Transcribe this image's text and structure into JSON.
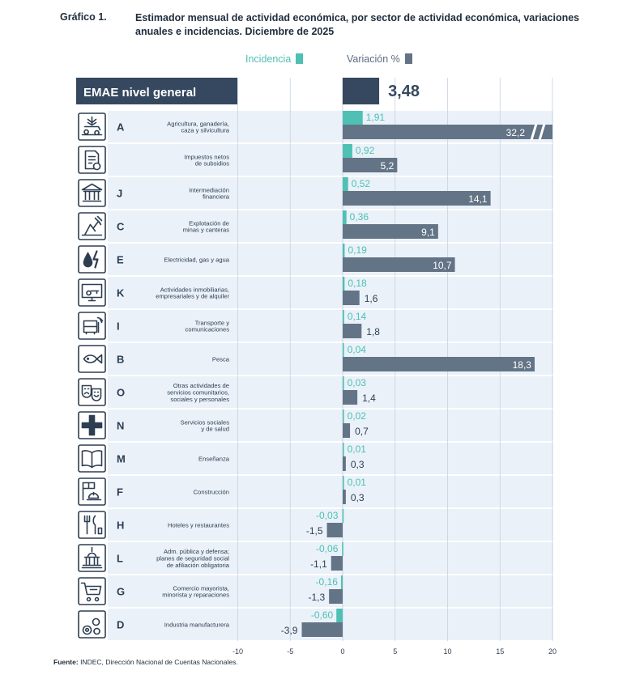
{
  "header": {
    "label": "Gráfico 1.",
    "title": "Estimador mensual de actividad económica, por sector de actividad económica, variaciones anuales e incidencias. Diciembre de 2025"
  },
  "legend": {
    "incidence": "Incidencia",
    "variation": "Variación %"
  },
  "colors": {
    "incidence": "#4ec0b4",
    "variation": "#637486",
    "dark": "#35485f",
    "row_light": "#eaf1f9",
    "text": "#2e3e52"
  },
  "footer": {
    "bold": "Fuente:",
    "text": " INDEC, Dirección Nacional de Cuentas Nacionales."
  },
  "chart_data": {
    "type": "bar",
    "orientation": "horizontal",
    "xlim": [
      -10,
      20
    ],
    "xticks": [
      -10,
      -5,
      0,
      5,
      10,
      15,
      20
    ],
    "total": {
      "label": "EMAE nivel general",
      "value": 3.48,
      "value_label": "3,48"
    },
    "truncation_note": "Agriculture variation bar broken at axis limit (32,2)",
    "rows": [
      {
        "letter": "A",
        "name": "Agricultura, ganadería, caza y silvicultura",
        "lines": [
          "Agricultura, ganadería,",
          "caza y silvicultura"
        ],
        "icon": "agriculture-icon",
        "incidence": 1.91,
        "incidence_label": "1,91",
        "variation": 32.2,
        "variation_label": "32,2"
      },
      {
        "letter": "",
        "name": "Impuestos netos de subsidios",
        "lines": [
          "Impuestos netos",
          "de subsidios"
        ],
        "icon": "taxes-icon",
        "incidence": 0.92,
        "incidence_label": "0,92",
        "variation": 5.2,
        "variation_label": "5,2"
      },
      {
        "letter": "J",
        "name": "Intermediación financiera",
        "lines": [
          "Intermediación",
          "financiera"
        ],
        "icon": "bank-icon",
        "incidence": 0.52,
        "incidence_label": "0,52",
        "variation": 14.1,
        "variation_label": "14,1"
      },
      {
        "letter": "C",
        "name": "Explotación de minas y canteras",
        "lines": [
          "Explotación de",
          "minas y canteras"
        ],
        "icon": "mining-icon",
        "incidence": 0.36,
        "incidence_label": "0,36",
        "variation": 9.1,
        "variation_label": "9,1"
      },
      {
        "letter": "E",
        "name": "Electricidad, gas y agua",
        "lines": [
          "Electricidad, gas y agua"
        ],
        "icon": "utilities-icon",
        "incidence": 0.19,
        "incidence_label": "0,19",
        "variation": 10.7,
        "variation_label": "10,7"
      },
      {
        "letter": "K",
        "name": "Actividades inmobiliarias, empresariales y de alquiler",
        "lines": [
          "Actividades inmobiliarias,",
          "empresariales y de alquiler"
        ],
        "icon": "real-estate-icon",
        "incidence": 0.18,
        "incidence_label": "0,18",
        "variation": 1.6,
        "variation_label": "1,6"
      },
      {
        "letter": "I",
        "name": "Transporte y comunicaciones",
        "lines": [
          "Transporte y",
          "comunicaciones"
        ],
        "icon": "transport-icon",
        "incidence": 0.14,
        "incidence_label": "0,14",
        "variation": 1.8,
        "variation_label": "1,8"
      },
      {
        "letter": "B",
        "name": "Pesca",
        "lines": [
          "Pesca"
        ],
        "icon": "fish-icon",
        "incidence": 0.04,
        "incidence_label": "0,04",
        "variation": 18.3,
        "variation_label": "18,3"
      },
      {
        "letter": "O",
        "name": "Otras actividades de servicios comunitarios, sociales y personales",
        "lines": [
          "Otras actividades de",
          "servicios comunitarios,",
          "sociales y personales"
        ],
        "icon": "theater-masks-icon",
        "incidence": 0.03,
        "incidence_label": "0,03",
        "variation": 1.4,
        "variation_label": "1,4"
      },
      {
        "letter": "N",
        "name": "Servicios sociales y de salud",
        "lines": [
          "Servicios sociales",
          "y de salud"
        ],
        "icon": "health-cross-icon",
        "incidence": 0.02,
        "incidence_label": "0,02",
        "variation": 0.7,
        "variation_label": "0,7"
      },
      {
        "letter": "M",
        "name": "Enseñanza",
        "lines": [
          "Enseñanza"
        ],
        "icon": "book-icon",
        "incidence": 0.01,
        "incidence_label": "0,01",
        "variation": 0.3,
        "variation_label": "0,3"
      },
      {
        "letter": "F",
        "name": "Construcción",
        "lines": [
          "Construcción"
        ],
        "icon": "construction-icon",
        "incidence": 0.01,
        "incidence_label": "0,01",
        "variation": 0.3,
        "variation_label": "0,3"
      },
      {
        "letter": "H",
        "name": "Hoteles y restaurantes",
        "lines": [
          "Hoteles y restaurantes"
        ],
        "icon": "cutlery-icon",
        "incidence": -0.03,
        "incidence_label": "-0,03",
        "variation": -1.5,
        "variation_label": "-1,5"
      },
      {
        "letter": "L",
        "name": "Adm. pública y defensa; planes de seguridad social de afiliación obligatoria",
        "lines": [
          "Adm. pública y defensa;",
          "planes de seguridad social",
          "de afiliación obligatoria"
        ],
        "icon": "government-building-icon",
        "incidence": -0.06,
        "incidence_label": "-0,06",
        "variation": -1.1,
        "variation_label": "-1,1"
      },
      {
        "letter": "G",
        "name": "Comercio mayorista, minorista y reparaciones",
        "lines": [
          "Comercio mayorista,",
          "minorista y reparaciones"
        ],
        "icon": "shopping-cart-icon",
        "incidence": -0.16,
        "incidence_label": "-0,16",
        "variation": -1.3,
        "variation_label": "-1,3"
      },
      {
        "letter": "D",
        "name": "Industria manufacturera",
        "lines": [
          "Industria manufacturera"
        ],
        "icon": "gears-icon",
        "incidence": -0.6,
        "incidence_label": "-0,60",
        "variation": -3.9,
        "variation_label": "-3,9"
      }
    ]
  }
}
